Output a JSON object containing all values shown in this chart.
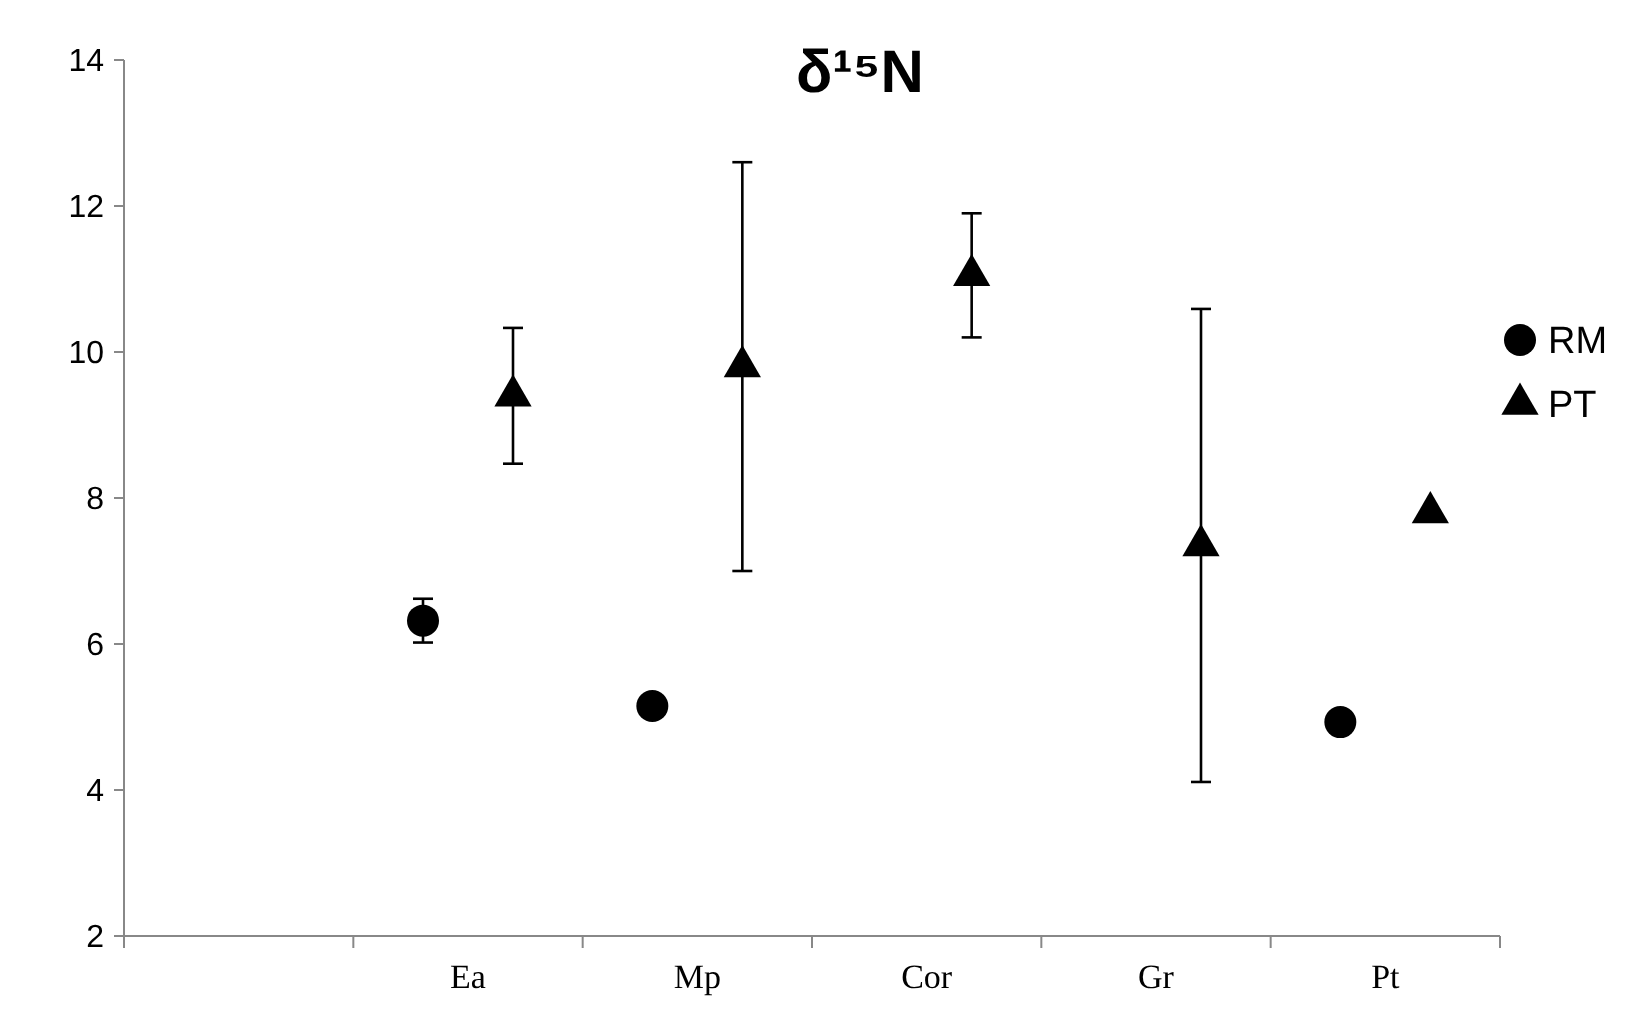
{
  "chart_data": {
    "type": "scatter",
    "title": "δ¹⁵N",
    "categories": [
      null,
      "Ea",
      "Mp",
      "Cor",
      "Gr",
      "Pt"
    ],
    "series": [
      {
        "name": "RM",
        "color": "#000000",
        "marker": "circle",
        "values": [
          null,
          6.32,
          5.15,
          null,
          null,
          4.93
        ],
        "errors": [
          null,
          0.3,
          0.12,
          null,
          null,
          null
        ]
      },
      {
        "name": "PT",
        "color": "#000000",
        "marker": "triangle",
        "values": [
          null,
          9.4,
          9.8,
          11.05,
          7.35,
          7.8
        ],
        "errors": [
          null,
          0.93,
          2.8,
          0.85,
          3.24,
          null
        ]
      }
    ],
    "ylim": [
      2,
      14
    ],
    "yticks": [
      2,
      4,
      6,
      8,
      10,
      12,
      14
    ],
    "grid": false,
    "legend": "right"
  }
}
